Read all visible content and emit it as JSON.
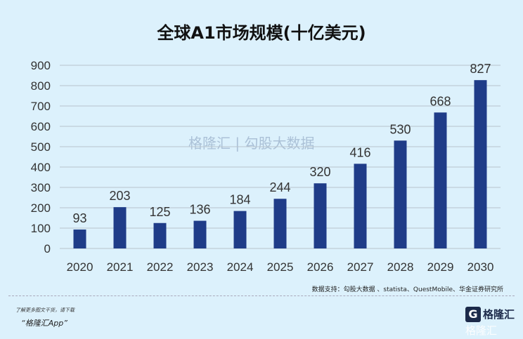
{
  "chart_data": {
    "type": "bar",
    "title": "全球A1市场规模(十亿美元)",
    "categories": [
      "2020",
      "2021",
      "2022",
      "2023",
      "2024",
      "2025",
      "2026",
      "2027",
      "2028",
      "2029",
      "2030"
    ],
    "values": [
      93,
      203,
      125,
      136,
      184,
      244,
      320,
      416,
      530,
      668,
      827
    ],
    "ylim": [
      0,
      900
    ],
    "yticks": [
      0,
      100,
      200,
      300,
      400,
      500,
      600,
      700,
      800,
      900
    ],
    "grid": true,
    "bar_color": "#1f3c88"
  },
  "source": "数据支持：勾股大数据 、statista、QuestMobile、华金证券研究所",
  "watermark": "格隆汇 | 勾股大数据",
  "promo": {
    "line1": "了解更多图文干货，请下载",
    "line2": "“格隆汇App”"
  },
  "logo": {
    "text": "格隆汇"
  }
}
